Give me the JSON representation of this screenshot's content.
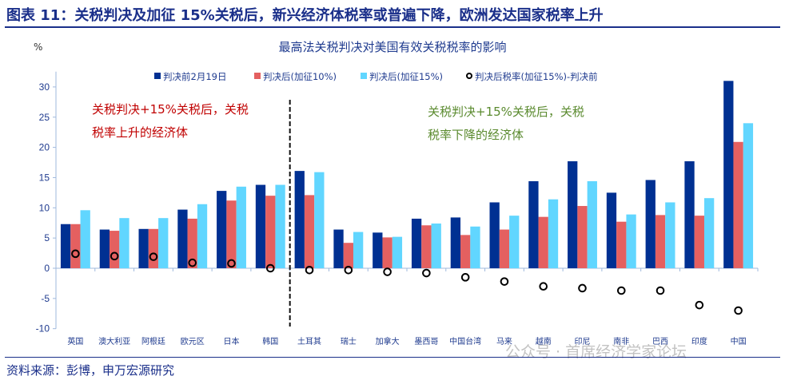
{
  "title": "图表 11：关税判决及加征 15%关税后，新兴经济体税率或普遍下降，欧洲发达国家税率上升",
  "source": "资料来源：彭博，申万宏源研究",
  "watermark": "公众号 · 首席经济学家论坛",
  "chart_data": {
    "type": "bar",
    "title": "最高法关税判决对美国有效关税税率的影响",
    "ylabel": "%",
    "ylim": [
      -10,
      32
    ],
    "yticks": [
      -10,
      -5,
      0,
      5,
      10,
      15,
      20,
      25,
      30
    ],
    "grid": false,
    "legend_placement": "top",
    "categories": [
      "英国",
      "澳大利亚",
      "阿根廷",
      "欧元区",
      "日本",
      "韩国",
      "土耳其",
      "瑞士",
      "加拿大",
      "墨西哥",
      "中国台湾",
      "马来",
      "越南",
      "印尼",
      "南非",
      "巴西",
      "印度",
      "中国"
    ],
    "series": [
      {
        "name": "判决前2月19日",
        "kind": "bar",
        "color": "#003092",
        "values": [
          7.3,
          6.4,
          6.5,
          9.7,
          12.8,
          13.8,
          16.1,
          6.4,
          5.9,
          8.2,
          8.4,
          10.9,
          14.4,
          17.7,
          12.5,
          14.6,
          17.7,
          31.0
        ]
      },
      {
        "name": "判决后(加征10%)",
        "kind": "bar",
        "color": "#e46060",
        "values": [
          7.3,
          6.2,
          6.5,
          8.2,
          11.2,
          12.0,
          12.1,
          4.2,
          5.1,
          7.1,
          5.5,
          6.4,
          8.5,
          10.3,
          7.7,
          8.8,
          8.7,
          20.9
        ]
      },
      {
        "name": "判决后(加征15%)",
        "kind": "bar",
        "color": "#61d6ff",
        "values": [
          9.6,
          8.3,
          8.3,
          10.6,
          13.5,
          13.8,
          15.9,
          6.0,
          5.2,
          7.4,
          6.9,
          8.7,
          11.4,
          14.4,
          8.9,
          10.9,
          11.6,
          24.0
        ]
      },
      {
        "name": "判决后税率(加征15%)-判决前",
        "kind": "scatter",
        "color": "#000000",
        "values": [
          2.4,
          2.0,
          1.9,
          0.9,
          0.8,
          0.0,
          -0.3,
          -0.3,
          -0.6,
          -0.8,
          -1.5,
          -2.2,
          -3.0,
          -3.3,
          -3.7,
          -3.7,
          -6.1,
          -7.0
        ]
      }
    ],
    "divider_after_category": "韩国",
    "annotations": [
      {
        "lines": [
          "关税判决+15%关税后，关税",
          "税率上升的经济体"
        ],
        "color": "#c00000"
      },
      {
        "lines": [
          "关税判决+15%关税后，关税",
          "税率下降的经济体"
        ],
        "color": "#5a8a2e"
      }
    ]
  }
}
